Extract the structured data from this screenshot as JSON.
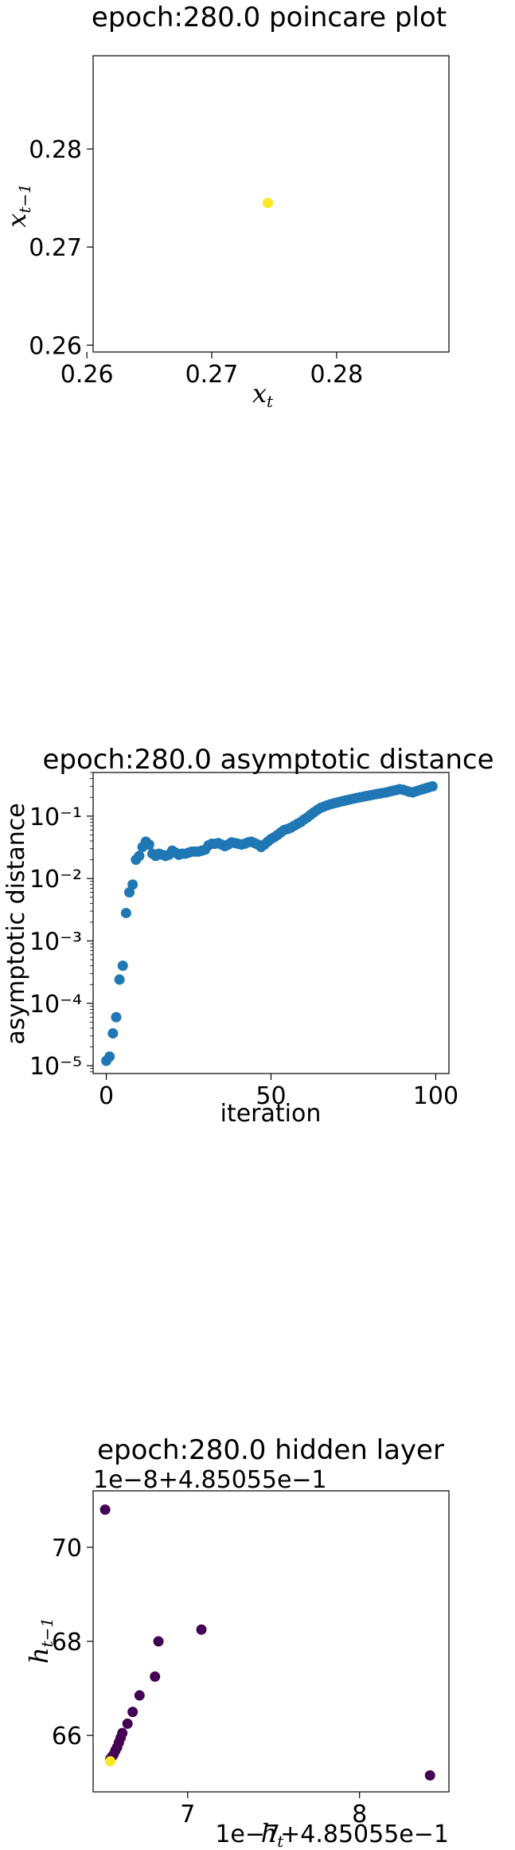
{
  "chart_data": [
    {
      "type": "scatter",
      "title": "epoch:280.0 poincare plot",
      "xlabel": "x",
      "xlabel_sub": "t",
      "ylabel": "x",
      "ylabel_sub": "t−1",
      "xlim": [
        0.2605,
        0.289
      ],
      "ylim": [
        0.2593,
        0.2895
      ],
      "xticks": [
        0.26,
        0.27,
        0.28
      ],
      "yticks": [
        0.26,
        0.27,
        0.28
      ],
      "xtick_labels": [
        "0.26",
        "0.27",
        "0.28"
      ],
      "ytick_labels": [
        "0.26",
        "0.27",
        "0.28"
      ],
      "points": [
        {
          "x": 0.2745,
          "y": 0.2745,
          "color": "#fde725"
        }
      ]
    },
    {
      "type": "scatter",
      "title": "epoch:280.0 asymptotic distance",
      "xlabel": "iteration",
      "ylabel": "asymptotic distance",
      "yscale": "log",
      "xlim": [
        -4,
        104
      ],
      "ylim": [
        7.5e-06,
        0.5
      ],
      "xticks": [
        0,
        50,
        100
      ],
      "xtick_labels": [
        "0",
        "50",
        "100"
      ],
      "yticks": [
        1e-05,
        0.0001,
        0.001,
        0.01,
        0.1
      ],
      "ytick_labels": [
        "10⁻⁵",
        "10⁻⁴",
        "10⁻³",
        "10⁻²",
        "10⁻¹"
      ],
      "color": "#1f77b4",
      "x": [
        0,
        1,
        2,
        3,
        4,
        5,
        6,
        7,
        8,
        9,
        10,
        11,
        12,
        13,
        14,
        15,
        16,
        17,
        18,
        19,
        20,
        21,
        22,
        23,
        24,
        25,
        26,
        27,
        28,
        29,
        30,
        31,
        32,
        33,
        34,
        35,
        36,
        37,
        38,
        39,
        40,
        41,
        42,
        43,
        44,
        45,
        46,
        47,
        48,
        49,
        50,
        51,
        52,
        53,
        54,
        55,
        56,
        57,
        58,
        59,
        60,
        61,
        62,
        63,
        64,
        65,
        66,
        67,
        68,
        69,
        70,
        71,
        72,
        73,
        74,
        75,
        76,
        77,
        78,
        79,
        80,
        81,
        82,
        83,
        84,
        85,
        86,
        87,
        88,
        89,
        90,
        91,
        92,
        93,
        94,
        95,
        96,
        97,
        98,
        99
      ],
      "y": [
        1.2e-05,
        1.4e-05,
        3.3e-05,
        6e-05,
        0.00024,
        0.0004,
        0.0028,
        0.006,
        0.008,
        0.02,
        0.023,
        0.032,
        0.039,
        0.035,
        0.025,
        0.023,
        0.025,
        0.024,
        0.023,
        0.024,
        0.028,
        0.026,
        0.024,
        0.025,
        0.025,
        0.026,
        0.027,
        0.027,
        0.027,
        0.028,
        0.029,
        0.034,
        0.036,
        0.036,
        0.037,
        0.035,
        0.033,
        0.035,
        0.038,
        0.037,
        0.036,
        0.035,
        0.036,
        0.038,
        0.039,
        0.037,
        0.035,
        0.032,
        0.035,
        0.039,
        0.043,
        0.046,
        0.05,
        0.055,
        0.06,
        0.062,
        0.065,
        0.07,
        0.075,
        0.08,
        0.088,
        0.095,
        0.105,
        0.115,
        0.125,
        0.135,
        0.142,
        0.148,
        0.155,
        0.16,
        0.165,
        0.17,
        0.175,
        0.18,
        0.185,
        0.19,
        0.195,
        0.2,
        0.205,
        0.21,
        0.215,
        0.22,
        0.225,
        0.23,
        0.235,
        0.24,
        0.248,
        0.255,
        0.262,
        0.27,
        0.265,
        0.255,
        0.245,
        0.24,
        0.25,
        0.26,
        0.27,
        0.28,
        0.29,
        0.3
      ]
    },
    {
      "type": "scatter",
      "title": "epoch:280.0 hidden layer",
      "xlabel": "h",
      "xlabel_sub": "t",
      "ylabel": "h",
      "ylabel_sub": "t−1",
      "y_offset_text": "1e−8+4.85055e−1",
      "x_offset_text": "1e−7+4.85055e−1",
      "xlim": [
        6.45,
        8.52
      ],
      "ylim": [
        64.8,
        71.2
      ],
      "xticks": [
        7,
        8
      ],
      "xtick_labels": [
        "7",
        "8"
      ],
      "yticks": [
        66,
        68,
        70
      ],
      "ytick_labels": [
        "66",
        "68",
        "70"
      ],
      "points": [
        {
          "x": 6.52,
          "y": 70.8,
          "color": "#440154"
        },
        {
          "x": 7.08,
          "y": 68.25,
          "color": "#440154"
        },
        {
          "x": 6.83,
          "y": 68.0,
          "color": "#440154"
        },
        {
          "x": 6.81,
          "y": 67.25,
          "color": "#440154"
        },
        {
          "x": 6.72,
          "y": 66.85,
          "color": "#440154"
        },
        {
          "x": 6.68,
          "y": 66.5,
          "color": "#440154"
        },
        {
          "x": 6.65,
          "y": 66.25,
          "color": "#440154"
        },
        {
          "x": 6.62,
          "y": 66.05,
          "color": "#440154"
        },
        {
          "x": 6.61,
          "y": 65.95,
          "color": "#440154"
        },
        {
          "x": 6.6,
          "y": 65.85,
          "color": "#440154"
        },
        {
          "x": 6.59,
          "y": 65.75,
          "color": "#440154"
        },
        {
          "x": 6.58,
          "y": 65.68,
          "color": "#440154"
        },
        {
          "x": 6.57,
          "y": 65.6,
          "color": "#440154"
        },
        {
          "x": 6.56,
          "y": 65.55,
          "color": "#440154"
        },
        {
          "x": 6.55,
          "y": 65.5,
          "color": "#440154"
        },
        {
          "x": 8.41,
          "y": 65.15,
          "color": "#440154"
        },
        {
          "x": 6.55,
          "y": 65.45,
          "color": "#fde725"
        }
      ]
    }
  ]
}
